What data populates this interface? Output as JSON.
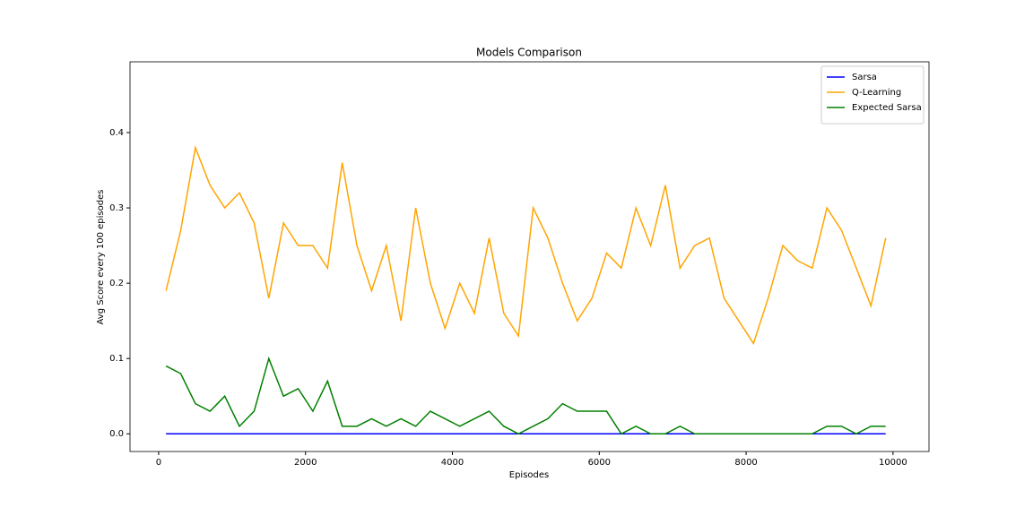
{
  "chart_data": {
    "type": "line",
    "title": "Models Comparison",
    "x_label": "Episodes",
    "y_label": "Avg Score every 100 episodes",
    "x": [
      100,
      300,
      500,
      700,
      900,
      1100,
      1300,
      1500,
      1700,
      1900,
      2100,
      2300,
      2500,
      2700,
      2900,
      3100,
      3300,
      3500,
      3700,
      3900,
      4100,
      4300,
      4500,
      4700,
      4900,
      5100,
      5300,
      5500,
      5700,
      5900,
      6100,
      6300,
      6500,
      6700,
      6900,
      7100,
      7300,
      7500,
      7700,
      7900,
      8100,
      8300,
      8500,
      8700,
      8900,
      9100,
      9300,
      9500,
      9700,
      9900
    ],
    "series": [
      {
        "name": "Sarsa",
        "color": "#0000ff",
        "values": [
          0,
          0,
          0,
          0,
          0,
          0,
          0,
          0,
          0,
          0,
          0,
          0,
          0,
          0,
          0,
          0,
          0,
          0,
          0,
          0,
          0,
          0,
          0,
          0,
          0,
          0,
          0,
          0,
          0,
          0,
          0,
          0,
          0,
          0,
          0,
          0,
          0,
          0,
          0,
          0,
          0,
          0,
          0,
          0,
          0,
          0,
          0,
          0,
          0,
          0
        ]
      },
      {
        "name": "Q-Learning",
        "color": "#ffa500",
        "values": [
          0.19,
          0.27,
          0.38,
          0.33,
          0.3,
          0.32,
          0.28,
          0.18,
          0.28,
          0.25,
          0.25,
          0.22,
          0.36,
          0.25,
          0.19,
          0.25,
          0.15,
          0.3,
          0.2,
          0.14,
          0.2,
          0.16,
          0.26,
          0.16,
          0.13,
          0.3,
          0.26,
          0.2,
          0.15,
          0.18,
          0.24,
          0.22,
          0.3,
          0.25,
          0.33,
          0.22,
          0.25,
          0.26,
          0.18,
          0.15,
          0.12,
          0.18,
          0.25,
          0.23,
          0.22,
          0.3,
          0.27,
          0.22,
          0.17,
          0.26
        ]
      },
      {
        "name": "Expected Sarsa",
        "color": "#008000",
        "values": [
          0.09,
          0.08,
          0.04,
          0.03,
          0.05,
          0.01,
          0.03,
          0.1,
          0.05,
          0.06,
          0.03,
          0.07,
          0.01,
          0.01,
          0.02,
          0.01,
          0.02,
          0.01,
          0.03,
          0.02,
          0.01,
          0.02,
          0.03,
          0.01,
          0,
          0.01,
          0.02,
          0.04,
          0.03,
          0.03,
          0.03,
          0,
          0.01,
          0,
          0,
          0.01,
          0,
          0,
          0,
          0,
          0,
          0,
          0,
          0,
          0,
          0.01,
          0.01,
          0,
          0.01,
          0.01
        ]
      }
    ],
    "xlim": [
      -390,
      10490
    ],
    "ylim": [
      -0.0235,
      0.494
    ],
    "xticks": [
      0,
      2000,
      4000,
      6000,
      8000,
      10000
    ],
    "yticks": [
      {
        "value": 0,
        "label": "0.0"
      },
      0.1,
      0.2,
      0.3,
      0.4
    ],
    "legend": "upper right"
  }
}
